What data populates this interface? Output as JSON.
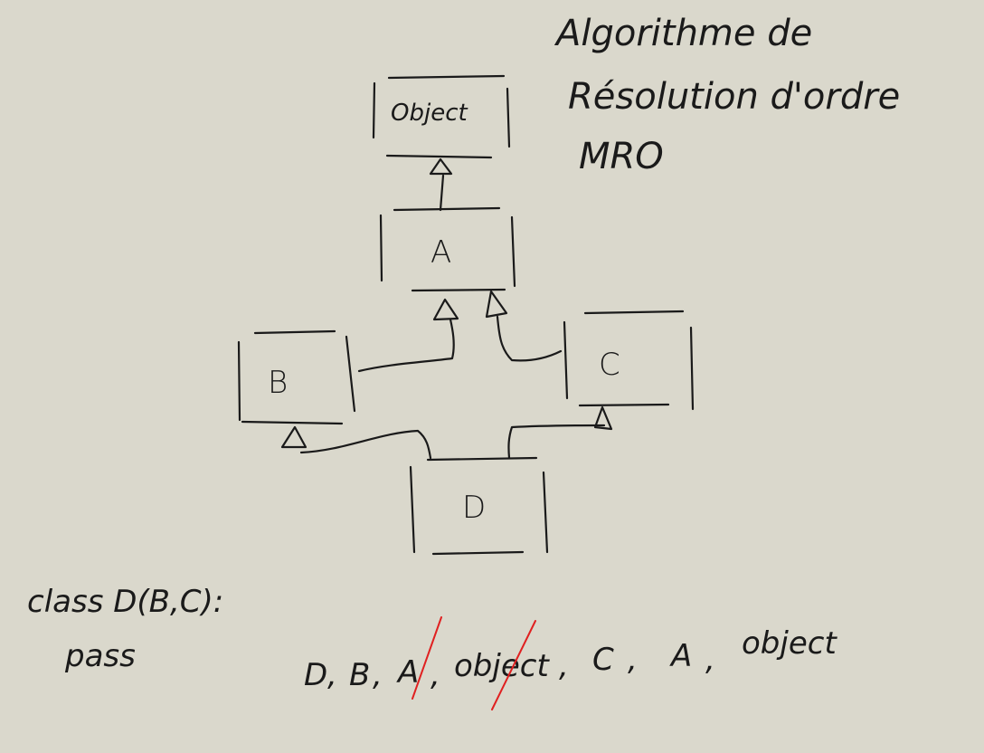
{
  "title": {
    "line1": "Algorithme de",
    "line2": "Résolution d'ordre",
    "line3": "MRO"
  },
  "classes": {
    "object": "Object",
    "a": "A",
    "b": "B",
    "c": "C",
    "d": "D"
  },
  "code": {
    "declaration": "class D(B,C):",
    "body": "pass"
  },
  "mro_sequence": {
    "s1": "D",
    "s2": "B",
    "s3": "A",
    "s4": "object",
    "s5": "C",
    "s6": "A",
    "s7": "object",
    "sep": ","
  },
  "colors": {
    "background": "#dad8cc",
    "ink": "#1a1a1a",
    "strike": "#e02020"
  }
}
